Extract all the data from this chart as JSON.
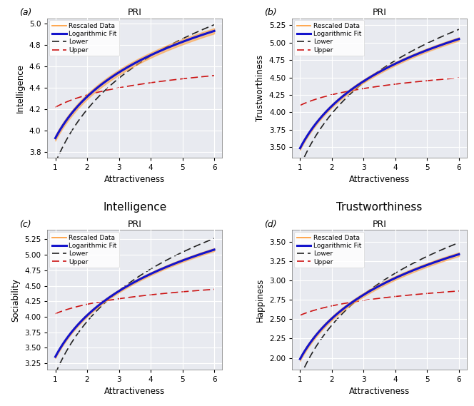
{
  "panels": [
    {
      "label": "(a)",
      "title": "PRI",
      "xlabel": "Attractiveness",
      "ylabel": "Intelligence",
      "bottom_label": "Intelligence",
      "ylim": [
        3.75,
        5.05
      ],
      "yticks": [
        3.8,
        4.0,
        4.2,
        4.4,
        4.6,
        4.8,
        5.0
      ],
      "log_fit": {
        "a": 3.932,
        "b": 0.558
      },
      "lower": {
        "a": 3.7,
        "b": 0.72
      },
      "upper": {
        "a": 4.22,
        "b": 0.165
      },
      "data_shift": 0.005
    },
    {
      "label": "(b)",
      "title": "PRI",
      "xlabel": "Attractiveness",
      "ylabel": "Trustworthiness",
      "bottom_label": "Trustworthiness",
      "ylim": [
        3.35,
        5.35
      ],
      "yticks": [
        3.5,
        3.75,
        4.0,
        4.25,
        4.5,
        4.75,
        5.0,
        5.25
      ],
      "log_fit": {
        "a": 3.485,
        "b": 0.875
      },
      "lower": {
        "a": 3.22,
        "b": 1.1
      },
      "upper": {
        "a": 4.1,
        "b": 0.22
      },
      "data_shift": 0.005
    },
    {
      "label": "(c)",
      "title": "PRI",
      "xlabel": "Attractiveness",
      "ylabel": "Sociability",
      "bottom_label": "Sociability",
      "ylim": [
        3.15,
        5.4
      ],
      "yticks": [
        3.25,
        3.5,
        3.75,
        4.0,
        4.25,
        4.5,
        4.75,
        5.0,
        5.25
      ],
      "log_fit": {
        "a": 3.355,
        "b": 0.965
      },
      "lower": {
        "a": 3.08,
        "b": 1.22
      },
      "upper": {
        "a": 4.05,
        "b": 0.22
      },
      "data_shift": 0.005
    },
    {
      "label": "(d)",
      "title": "PRI",
      "xlabel": "Attractiveness",
      "ylabel": "Happiness",
      "bottom_label": "Happiness",
      "ylim": [
        1.85,
        3.65
      ],
      "yticks": [
        2.0,
        2.25,
        2.5,
        2.75,
        3.0,
        3.25,
        3.5
      ],
      "log_fit": {
        "a": 1.985,
        "b": 0.755
      },
      "lower": {
        "a": 1.75,
        "b": 0.97
      },
      "upper": {
        "a": 2.55,
        "b": 0.175
      },
      "data_shift": 0.005
    }
  ],
  "colors": {
    "rescaled_data": "#FFA040",
    "log_fit": "#1414CC",
    "lower": "#222222",
    "upper": "#CC1414",
    "fill": "#FFA040",
    "background": "#E8EAF0"
  },
  "legend_labels": [
    "Rescaled Data",
    "Logarithmic Fit",
    "Lower",
    "Upper"
  ],
  "xlim": [
    0.75,
    6.25
  ],
  "xticks": [
    1,
    2,
    3,
    4,
    5,
    6
  ]
}
